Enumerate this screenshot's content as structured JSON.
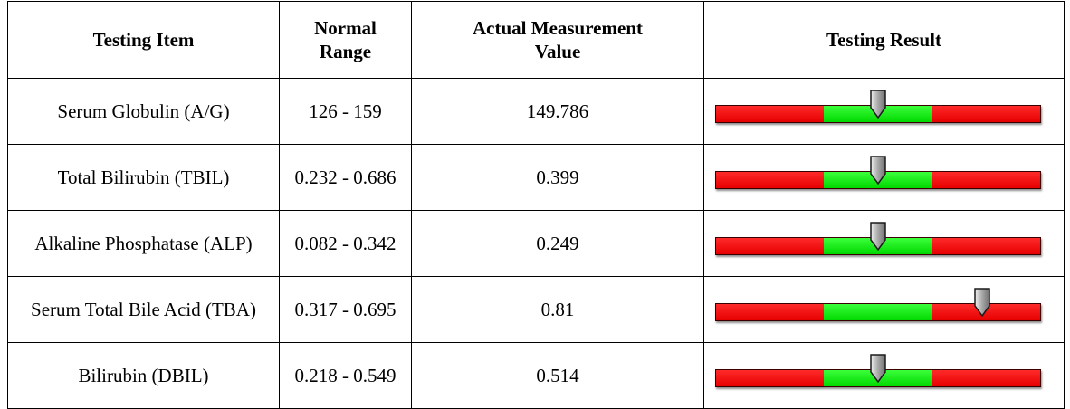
{
  "table": {
    "headers": [
      "Testing Item",
      "Normal\nRange",
      "Actual Measurement\nValue",
      "Testing Result"
    ],
    "rows": [
      {
        "item": "Serum Globulin (A/G)",
        "range": "126 - 159",
        "value": "149.786",
        "gauge_position": 0.5
      },
      {
        "item": "Total Bilirubin (TBIL)",
        "range": "0.232 - 0.686",
        "value": "0.399",
        "gauge_position": 0.5
      },
      {
        "item": "Alkaline Phosphatase (ALP)",
        "range": "0.082 - 0.342",
        "value": "0.249",
        "gauge_position": 0.5
      },
      {
        "item": "Serum Total Bile Acid (TBA)",
        "range": "0.317 - 0.695",
        "value": "0.81",
        "gauge_position": 0.82
      },
      {
        "item": "Bilirubin (DBIL)",
        "range": "0.218 - 0.549",
        "value": "0.514",
        "gauge_position": 0.5
      }
    ]
  },
  "colors": {
    "low": "#ff0000",
    "normal": "#00ee00",
    "high": "#ff0000",
    "marker": "#a8a8a8"
  }
}
